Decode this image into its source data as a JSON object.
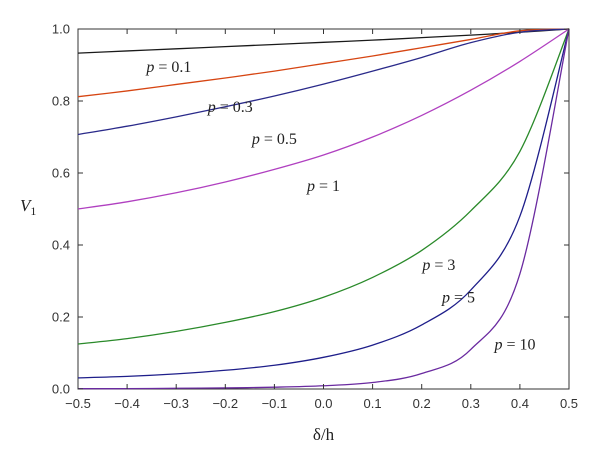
{
  "chart_data": {
    "type": "line",
    "title": "",
    "xlabel": "δ/h",
    "ylabel_main": "V",
    "ylabel_sub": "1",
    "xlim": [
      -0.5,
      0.5
    ],
    "ylim": [
      0.0,
      1.0
    ],
    "x_ticks": [
      "−0.5",
      "−0.4",
      "−0.3",
      "−0.2",
      "−0.1",
      "0.0",
      "0.1",
      "0.2",
      "0.3",
      "0.4",
      "0.5"
    ],
    "y_ticks": [
      "0.0",
      "0.2",
      "0.4",
      "0.6",
      "0.8",
      "1.0"
    ],
    "grid": false,
    "x": [
      -0.5,
      -0.4,
      -0.3,
      -0.2,
      -0.1,
      0.0,
      0.1,
      0.2,
      0.3,
      0.4,
      0.5
    ],
    "series": [
      {
        "name": "p = 0.1",
        "exponent": 0.1,
        "color": "#1a1a1a",
        "values": [
          0.933,
          0.939,
          0.945,
          0.951,
          0.957,
          0.963,
          0.969,
          0.976,
          0.983,
          0.991,
          1.0
        ]
      },
      {
        "name": "p = 0.3",
        "exponent": 0.3,
        "color": "#d64512",
        "values": [
          0.812,
          0.828,
          0.846,
          0.864,
          0.883,
          0.904,
          0.925,
          0.948,
          0.971,
          0.995,
          1.0
        ]
      },
      {
        "name": "p = 0.5",
        "exponent": 0.5,
        "color": "#2a2a8a",
        "values": [
          0.707,
          0.73,
          0.756,
          0.784,
          0.814,
          0.847,
          0.883,
          0.921,
          0.962,
          0.991,
          1.0
        ]
      },
      {
        "name": "p = 1",
        "exponent": 1,
        "color": "#b040c0",
        "values": [
          0.5,
          0.52,
          0.545,
          0.575,
          0.61,
          0.65,
          0.7,
          0.76,
          0.83,
          0.91,
          1.0
        ]
      },
      {
        "name": "p = 3",
        "exponent": 3,
        "color": "#2a8a2a",
        "values": [
          0.125,
          0.14,
          0.16,
          0.185,
          0.215,
          0.255,
          0.31,
          0.385,
          0.495,
          0.66,
          1.0
        ]
      },
      {
        "name": "p = 5",
        "exponent": 5,
        "color": "#1e1e8a",
        "values": [
          0.031,
          0.035,
          0.042,
          0.052,
          0.066,
          0.088,
          0.122,
          0.178,
          0.275,
          0.48,
          1.0
        ]
      },
      {
        "name": "p = 10",
        "exponent": 10,
        "color": "#6a2aa0",
        "values": [
          0.001,
          0.001,
          0.002,
          0.003,
          0.005,
          0.009,
          0.018,
          0.043,
          0.11,
          0.32,
          1.0
        ]
      }
    ],
    "curve_labels": [
      {
        "p": "p",
        "eq": " = 0.1",
        "at": [
          -0.315,
          0.88
        ]
      },
      {
        "p": "p",
        "eq": " = 0.3",
        "at": [
          -0.19,
          0.77
        ]
      },
      {
        "p": "p",
        "eq": " = 0.5",
        "at": [
          -0.1,
          0.68
        ]
      },
      {
        "p": "p",
        "eq": " = 1",
        "at": [
          0.0,
          0.55
        ]
      },
      {
        "p": "p",
        "eq": " = 3",
        "at": [
          0.235,
          0.33
        ]
      },
      {
        "p": "p",
        "eq": " = 5",
        "at": [
          0.275,
          0.24
        ]
      },
      {
        "p": "p",
        "eq": " = 10",
        "at": [
          0.39,
          0.11
        ]
      }
    ]
  }
}
